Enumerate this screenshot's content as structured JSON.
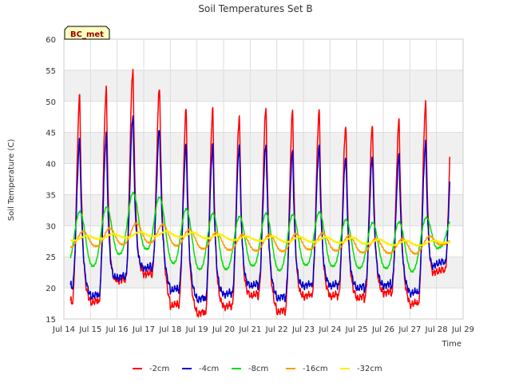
{
  "chart_data": {
    "type": "line",
    "title": "Soil Temperatures Set B",
    "xlabel": "Time",
    "ylabel": "Soil Temperature (C)",
    "site_badge": "BC_met",
    "ylim": [
      15,
      60
    ],
    "yticks": [
      15,
      20,
      25,
      30,
      35,
      40,
      45,
      50,
      55,
      60
    ],
    "xlim": [
      14,
      29
    ],
    "xticks": [
      {
        "v": 14,
        "label": "Jul 14"
      },
      {
        "v": 15,
        "label": "Jul 15"
      },
      {
        "v": 16,
        "label": "Jul 16"
      },
      {
        "v": 17,
        "label": "Jul 17"
      },
      {
        "v": 18,
        "label": "Jul 18"
      },
      {
        "v": 19,
        "label": "Jul 19"
      },
      {
        "v": 20,
        "label": "Jul 20"
      },
      {
        "v": 21,
        "label": "Jul 21"
      },
      {
        "v": 22,
        "label": "Jul 22"
      },
      {
        "v": 23,
        "label": "Jul 23"
      },
      {
        "v": 24,
        "label": "Jul 24"
      },
      {
        "v": 25,
        "label": "Jul 25"
      },
      {
        "v": 26,
        "label": "Jul 26"
      },
      {
        "v": 27,
        "label": "Jul 27"
      },
      {
        "v": 28,
        "label": "Jul 28"
      },
      {
        "v": 29,
        "label": "Jul 29"
      }
    ],
    "grid": true,
    "legend_position": "bottom",
    "x_range_of_data": [
      14.25,
      28.5
    ],
    "series": [
      {
        "name": "-2cm",
        "color": "#ff0000",
        "daily_min": [
          17.5,
          17.5,
          21.0,
          22.0,
          17.0,
          15.7,
          16.8,
          18.6,
          16.0,
          18.5,
          18.5,
          18.2,
          19.0,
          17.2,
          22.5
        ],
        "daily_max": [
          50.8,
          52.0,
          55.3,
          52.3,
          48.7,
          48.8,
          47.7,
          49.0,
          48.5,
          48.6,
          46.2,
          46.2,
          46.9,
          49.7
        ]
      },
      {
        "name": "-4cm",
        "color": "#0000cc",
        "daily_min": [
          20.0,
          18.5,
          21.5,
          23.0,
          19.5,
          18.0,
          18.8,
          20.2,
          18.2,
          20.2,
          20.2,
          19.8,
          20.2,
          19.0,
          23.8
        ],
        "daily_max": [
          43.7,
          44.6,
          47.8,
          45.7,
          43.0,
          43.0,
          43.0,
          43.1,
          42.0,
          42.9,
          41.2,
          41.2,
          41.3,
          43.3
        ]
      },
      {
        "name": "-8cm",
        "color": "#00dd00",
        "daily_min": [
          23.7,
          23.5,
          25.5,
          26.3,
          24.0,
          23.0,
          23.0,
          23.6,
          22.8,
          23.7,
          23.5,
          23.2,
          23.2,
          22.6,
          26.5
        ],
        "daily_max": [
          32.3,
          33.0,
          35.3,
          34.6,
          32.7,
          32.0,
          31.5,
          32.0,
          31.8,
          32.2,
          31.0,
          30.5,
          30.6,
          31.3
        ]
      },
      {
        "name": "-16cm",
        "color": "#ff9900",
        "daily_min": [
          26.5,
          26.7,
          27.0,
          27.3,
          26.8,
          26.3,
          26.1,
          26.0,
          25.9,
          26.2,
          26.0,
          25.7,
          25.6,
          25.5,
          27.0
        ],
        "daily_max": [
          29.1,
          29.6,
          30.4,
          30.2,
          29.4,
          28.9,
          28.6,
          28.6,
          28.7,
          28.8,
          28.4,
          27.9,
          27.9,
          28.3
        ]
      },
      {
        "name": "-32cm",
        "color": "#ffee00",
        "daily_min": [
          27.6,
          27.9,
          28.1,
          28.3,
          28.2,
          28.0,
          27.7,
          27.6,
          27.4,
          27.4,
          27.3,
          27.1,
          26.9,
          26.8,
          27.3
        ],
        "daily_max": [
          28.4,
          28.7,
          29.0,
          29.1,
          28.9,
          28.6,
          28.3,
          28.3,
          28.2,
          28.2,
          28.1,
          27.8,
          27.6,
          27.6
        ]
      }
    ]
  }
}
